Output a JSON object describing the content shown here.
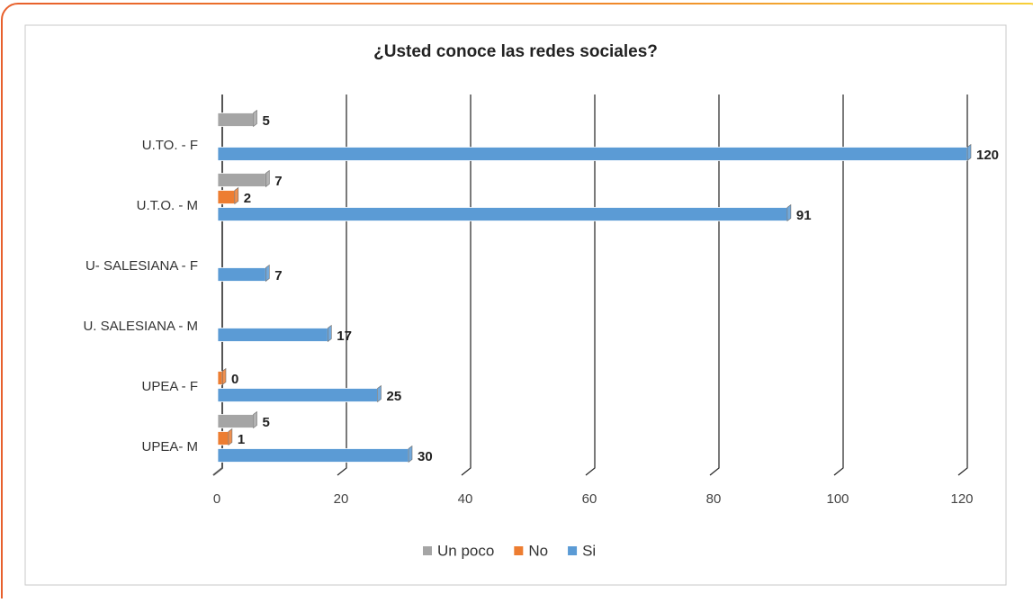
{
  "chart_data": {
    "type": "bar",
    "orientation": "horizontal",
    "title": "¿Usted conoce las redes sociales?",
    "categories": [
      "U.TO. - F",
      "U.T.O. - M",
      "U- SALESIANA - F",
      "U. SALESIANA - M",
      "UPEA - F",
      "UPEA- M"
    ],
    "series": [
      {
        "name": "Un poco",
        "color": "#a5a5a5",
        "values": [
          5,
          7,
          null,
          null,
          null,
          5
        ]
      },
      {
        "name": "No",
        "color": "#ed7d31",
        "values": [
          null,
          2,
          null,
          null,
          0,
          1
        ]
      },
      {
        "name": "Si",
        "color": "#5b9bd5",
        "values": [
          120,
          91,
          7,
          17,
          25,
          30
        ]
      }
    ],
    "xlim": [
      0,
      120
    ],
    "xticks": [
      0,
      20,
      40,
      60,
      80,
      100,
      120
    ],
    "grid": true,
    "legend": "bottom"
  }
}
